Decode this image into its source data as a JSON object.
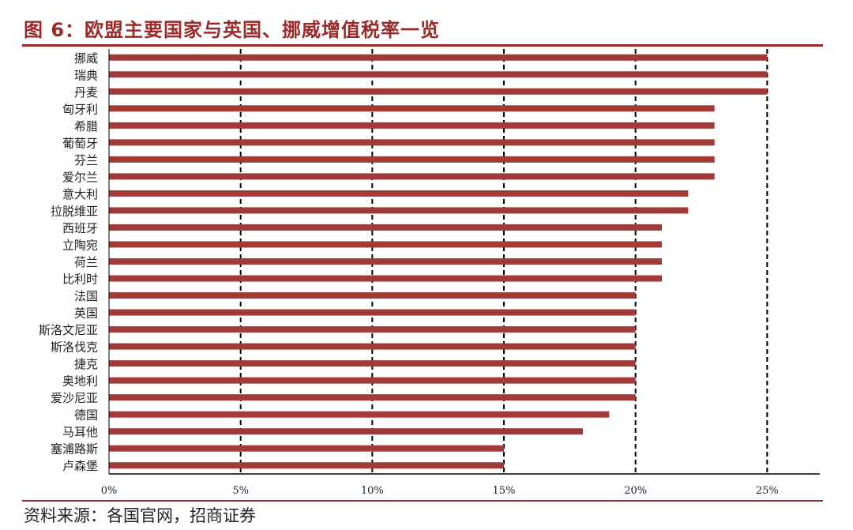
{
  "title": "图 6：欧盟主要国家与英国、挪威增值税率一览",
  "source": "资料来源：各国官网，招商证券",
  "colors": {
    "bar": "#a33a3a",
    "accent": "#9b2a2a",
    "grid": "#000000",
    "text": "#222222"
  },
  "chart_data": {
    "type": "bar",
    "orientation": "horizontal",
    "categories": [
      "挪威",
      "瑞典",
      "丹麦",
      "匈牙利",
      "希腊",
      "葡萄牙",
      "芬兰",
      "爱尔兰",
      "意大利",
      "拉脱维亚",
      "西班牙",
      "立陶宛",
      "荷兰",
      "比利时",
      "法国",
      "英国",
      "斯洛文尼亚",
      "斯洛伐克",
      "捷克",
      "奥地利",
      "爱沙尼亚",
      "德国",
      "马耳他",
      "塞浦路斯",
      "卢森堡"
    ],
    "values": [
      25,
      25,
      25,
      23,
      23,
      23,
      23,
      23,
      22,
      22,
      21,
      21,
      21,
      21,
      20,
      20,
      20,
      20,
      20,
      20,
      20,
      19,
      18,
      15,
      15
    ],
    "xlim": [
      0,
      27
    ],
    "x_ticks": [
      0,
      5,
      10,
      15,
      20,
      25
    ],
    "x_tick_labels": [
      "0%",
      "5%",
      "10%",
      "15%",
      "20%",
      "25%"
    ],
    "grid": "vertical dashed",
    "legend": "none",
    "title": "",
    "xlabel": "",
    "ylabel": ""
  }
}
